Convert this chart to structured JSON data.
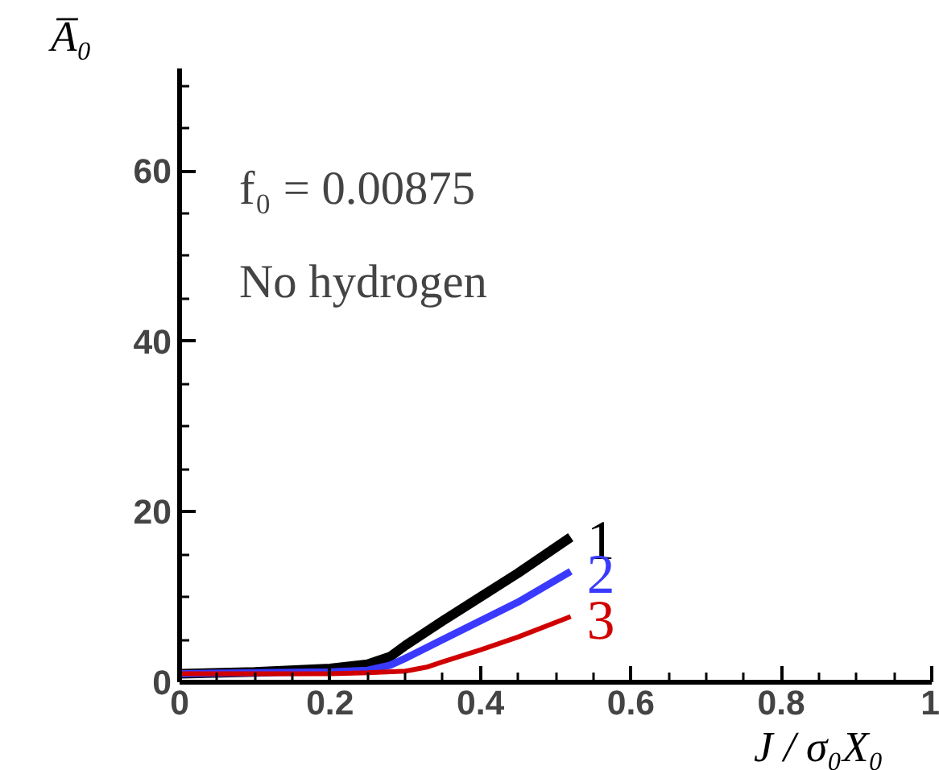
{
  "chart_data": {
    "type": "line",
    "xlabel": "J / σ₀X₀",
    "ylabel": "A̅₀",
    "annotations": [
      "f₀ = 0.00875",
      "No hydrogen"
    ],
    "xlim": [
      0,
      1
    ],
    "ylim": [
      0,
      72
    ],
    "xticks": [
      0,
      0.2,
      0.4,
      0.6,
      0.8,
      1
    ],
    "yticks": [
      0,
      20,
      40,
      60
    ],
    "grid": false,
    "legend": false,
    "line_style": "solid",
    "marker": "none",
    "series": [
      {
        "name": "1",
        "color": "#000000",
        "x": [
          0,
          0.1,
          0.2,
          0.25,
          0.28,
          0.3,
          0.35,
          0.4,
          0.45,
          0.52
        ],
        "values": [
          1,
          1.2,
          1.6,
          2.1,
          3,
          4.3,
          7.2,
          10,
          12.8,
          17
        ]
      },
      {
        "name": "2",
        "color": "#3a3aff",
        "x": [
          0,
          0.1,
          0.2,
          0.25,
          0.28,
          0.3,
          0.35,
          0.4,
          0.45,
          0.52
        ],
        "values": [
          1,
          1.1,
          1.2,
          1.4,
          2,
          2.8,
          5,
          7.2,
          9.4,
          13
        ]
      },
      {
        "name": "3",
        "color": "#d00000",
        "x": [
          0,
          0.1,
          0.2,
          0.25,
          0.3,
          0.33,
          0.35,
          0.4,
          0.45,
          0.52
        ],
        "values": [
          1,
          1,
          1,
          1.1,
          1.3,
          1.8,
          2.4,
          3.8,
          5.3,
          7.7
        ]
      }
    ]
  }
}
